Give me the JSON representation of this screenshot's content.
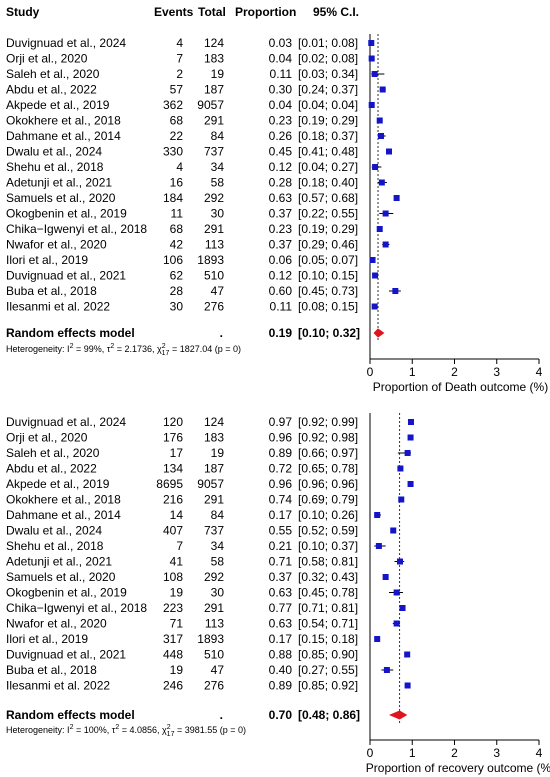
{
  "header": {
    "study": "Study",
    "events": "Events",
    "total": "Total",
    "proportion": "Proportion",
    "ci": "95% C.I."
  },
  "chart_data": [
    {
      "type": "forest",
      "xlabel": "Proportion of Death outcome (%)",
      "xticks": [
        "0",
        "1",
        "2",
        "3",
        "4"
      ],
      "xlim": [
        0,
        4
      ],
      "reference_line": 0.19,
      "studies": [
        {
          "study": "Duvignuad et al., 2024",
          "events": "4",
          "total": "124",
          "proportion": "0.03",
          "ci": "[0.01; 0.08]",
          "est": 0.03,
          "lo": 0.01,
          "hi": 0.08
        },
        {
          "study": "Orji et al., 2020",
          "events": "7",
          "total": "183",
          "proportion": "0.04",
          "ci": "[0.02; 0.08]",
          "est": 0.04,
          "lo": 0.02,
          "hi": 0.08
        },
        {
          "study": "Saleh et al., 2020",
          "events": "2",
          "total": "19",
          "proportion": "0.11",
          "ci": "[0.03; 0.34]",
          "est": 0.11,
          "lo": 0.03,
          "hi": 0.34
        },
        {
          "study": "Abdu et al., 2022",
          "events": "57",
          "total": "187",
          "proportion": "0.30",
          "ci": "[0.24; 0.37]",
          "est": 0.3,
          "lo": 0.24,
          "hi": 0.37
        },
        {
          "study": "Akpede et al., 2019",
          "events": "362",
          "total": "9057",
          "proportion": "0.04",
          "ci": "[0.04; 0.04]",
          "est": 0.04,
          "lo": 0.04,
          "hi": 0.04
        },
        {
          "study": "Okokhere et al., 2018",
          "events": "68",
          "total": "291",
          "proportion": "0.23",
          "ci": "[0.19; 0.29]",
          "est": 0.23,
          "lo": 0.19,
          "hi": 0.29
        },
        {
          "study": "Dahmane et al., 2014",
          "events": "22",
          "total": "84",
          "proportion": "0.26",
          "ci": "[0.18; 0.37]",
          "est": 0.26,
          "lo": 0.18,
          "hi": 0.37
        },
        {
          "study": "Dwalu et al., 2024",
          "events": "330",
          "total": "737",
          "proportion": "0.45",
          "ci": "[0.41; 0.48]",
          "est": 0.45,
          "lo": 0.41,
          "hi": 0.48
        },
        {
          "study": "Shehu et al., 2018",
          "events": "4",
          "total": "34",
          "proportion": "0.12",
          "ci": "[0.04; 0.27]",
          "est": 0.12,
          "lo": 0.04,
          "hi": 0.27
        },
        {
          "study": "Adetunji et al., 2021",
          "events": "16",
          "total": "58",
          "proportion": "0.28",
          "ci": "[0.18; 0.40]",
          "est": 0.28,
          "lo": 0.18,
          "hi": 0.4
        },
        {
          "study": "Samuels et al., 2020",
          "events": "184",
          "total": "292",
          "proportion": "0.63",
          "ci": "[0.57; 0.68]",
          "est": 0.63,
          "lo": 0.57,
          "hi": 0.68
        },
        {
          "study": "Okogbenin et al., 2019",
          "events": "11",
          "total": "30",
          "proportion": "0.37",
          "ci": "[0.22; 0.55]",
          "est": 0.37,
          "lo": 0.22,
          "hi": 0.55
        },
        {
          "study": "Chika−Igwenyi et al., 2018",
          "events": "68",
          "total": "291",
          "proportion": "0.23",
          "ci": "[0.19; 0.29]",
          "est": 0.23,
          "lo": 0.19,
          "hi": 0.29
        },
        {
          "study": "Nwafor et al., 2020",
          "events": "42",
          "total": "113",
          "proportion": "0.37",
          "ci": "[0.29; 0.46]",
          "est": 0.37,
          "lo": 0.29,
          "hi": 0.46
        },
        {
          "study": "Ilori et al., 2019",
          "events": "106",
          "total": "1893",
          "proportion": "0.06",
          "ci": "[0.05; 0.07]",
          "est": 0.06,
          "lo": 0.05,
          "hi": 0.07
        },
        {
          "study": "Duvignuad et al., 2021",
          "events": "62",
          "total": "510",
          "proportion": "0.12",
          "ci": "[0.10; 0.15]",
          "est": 0.12,
          "lo": 0.1,
          "hi": 0.15
        },
        {
          "study": "Buba et al., 2018",
          "events": "28",
          "total": "47",
          "proportion": "0.60",
          "ci": "[0.45; 0.73]",
          "est": 0.6,
          "lo": 0.45,
          "hi": 0.73
        },
        {
          "study": "Ilesanmi et al. 2022",
          "events": "30",
          "total": "276",
          "proportion": "0.11",
          "ci": "[0.08; 0.15]",
          "est": 0.11,
          "lo": 0.08,
          "hi": 0.15
        }
      ],
      "summary": {
        "label": "Random effects model",
        "events": ".",
        "proportion": "0.19",
        "ci": "[0.10; 0.32]",
        "est": 0.19,
        "lo": 0.1,
        "hi": 0.32
      },
      "heterogeneity": {
        "prefix": "Heterogeneity: ",
        "i2": "99%",
        "tau2": "2.1736",
        "chi_df": "17",
        "chi": "1827.04",
        "p": "(p = 0)"
      }
    },
    {
      "type": "forest",
      "xlabel": "Proportion of recovery outcome (%)",
      "xticks": [
        "0",
        "1",
        "2",
        "3",
        "4"
      ],
      "xlim": [
        0,
        4
      ],
      "reference_line": 0.7,
      "studies": [
        {
          "study": "Duvignuad et al., 2024",
          "events": "120",
          "total": "124",
          "proportion": "0.97",
          "ci": "[0.92; 0.99]",
          "est": 0.97,
          "lo": 0.92,
          "hi": 0.99
        },
        {
          "study": "Orji et al., 2020",
          "events": "176",
          "total": "183",
          "proportion": "0.96",
          "ci": "[0.92; 0.98]",
          "est": 0.96,
          "lo": 0.92,
          "hi": 0.98
        },
        {
          "study": "Saleh et al., 2020",
          "events": "17",
          "total": "19",
          "proportion": "0.89",
          "ci": "[0.66; 0.97]",
          "est": 0.89,
          "lo": 0.66,
          "hi": 0.97
        },
        {
          "study": "Abdu et al., 2022",
          "events": "134",
          "total": "187",
          "proportion": "0.72",
          "ci": "[0.65; 0.78]",
          "est": 0.72,
          "lo": 0.65,
          "hi": 0.78
        },
        {
          "study": "Akpede et al., 2019",
          "events": "8695",
          "total": "9057",
          "proportion": "0.96",
          "ci": "[0.96; 0.96]",
          "est": 0.96,
          "lo": 0.96,
          "hi": 0.96
        },
        {
          "study": "Okokhere et al., 2018",
          "events": "216",
          "total": "291",
          "proportion": "0.74",
          "ci": "[0.69; 0.79]",
          "est": 0.74,
          "lo": 0.69,
          "hi": 0.79
        },
        {
          "study": "Dahmane et al., 2014",
          "events": "14",
          "total": "84",
          "proportion": "0.17",
          "ci": "[0.10; 0.26]",
          "est": 0.17,
          "lo": 0.1,
          "hi": 0.26
        },
        {
          "study": "Dwalu et al., 2024",
          "events": "407",
          "total": "737",
          "proportion": "0.55",
          "ci": "[0.52; 0.59]",
          "est": 0.55,
          "lo": 0.52,
          "hi": 0.59
        },
        {
          "study": "Shehu et al., 2018",
          "events": "7",
          "total": "34",
          "proportion": "0.21",
          "ci": "[0.10; 0.37]",
          "est": 0.21,
          "lo": 0.1,
          "hi": 0.37
        },
        {
          "study": "Adetunji et al., 2021",
          "events": "41",
          "total": "58",
          "proportion": "0.71",
          "ci": "[0.58; 0.81]",
          "est": 0.71,
          "lo": 0.58,
          "hi": 0.81
        },
        {
          "study": "Samuels et al., 2020",
          "events": "108",
          "total": "292",
          "proportion": "0.37",
          "ci": "[0.32; 0.43]",
          "est": 0.37,
          "lo": 0.32,
          "hi": 0.43
        },
        {
          "study": "Okogbenin et al., 2019",
          "events": "19",
          "total": "30",
          "proportion": "0.63",
          "ci": "[0.45; 0.78]",
          "est": 0.63,
          "lo": 0.45,
          "hi": 0.78
        },
        {
          "study": "Chika−Igwenyi et al., 2018",
          "events": "223",
          "total": "291",
          "proportion": "0.77",
          "ci": "[0.71; 0.81]",
          "est": 0.77,
          "lo": 0.71,
          "hi": 0.81
        },
        {
          "study": "Nwafor et al., 2020",
          "events": "71",
          "total": "113",
          "proportion": "0.63",
          "ci": "[0.54; 0.71]",
          "est": 0.63,
          "lo": 0.54,
          "hi": 0.71
        },
        {
          "study": "Ilori et al., 2019",
          "events": "317",
          "total": "1893",
          "proportion": "0.17",
          "ci": "[0.15; 0.18]",
          "est": 0.17,
          "lo": 0.15,
          "hi": 0.18
        },
        {
          "study": "Duvignuad et al., 2021",
          "events": "448",
          "total": "510",
          "proportion": "0.88",
          "ci": "[0.85; 0.90]",
          "est": 0.88,
          "lo": 0.85,
          "hi": 0.9
        },
        {
          "study": "Buba et al., 2018",
          "events": "19",
          "total": "47",
          "proportion": "0.40",
          "ci": "[0.27; 0.55]",
          "est": 0.4,
          "lo": 0.27,
          "hi": 0.55
        },
        {
          "study": "Ilesanmi et al. 2022",
          "events": "246",
          "total": "276",
          "proportion": "0.89",
          "ci": "[0.85; 0.92]",
          "est": 0.89,
          "lo": 0.85,
          "hi": 0.92
        }
      ],
      "summary": {
        "label": "Random effects model",
        "events": ".",
        "proportion": "0.70",
        "ci": "[0.48; 0.86]",
        "est": 0.7,
        "lo": 0.48,
        "hi": 0.86
      },
      "heterogeneity": {
        "prefix": "Heterogeneity: ",
        "i2": "100%",
        "tau2": "4.0856",
        "chi_df": "17",
        "chi": "3981.55",
        "p": "(p = 0)"
      }
    }
  ],
  "colors": {
    "square": "#1414c8",
    "diamond": "#e0141e",
    "line": "#000000",
    "dotted": "#333333"
  }
}
